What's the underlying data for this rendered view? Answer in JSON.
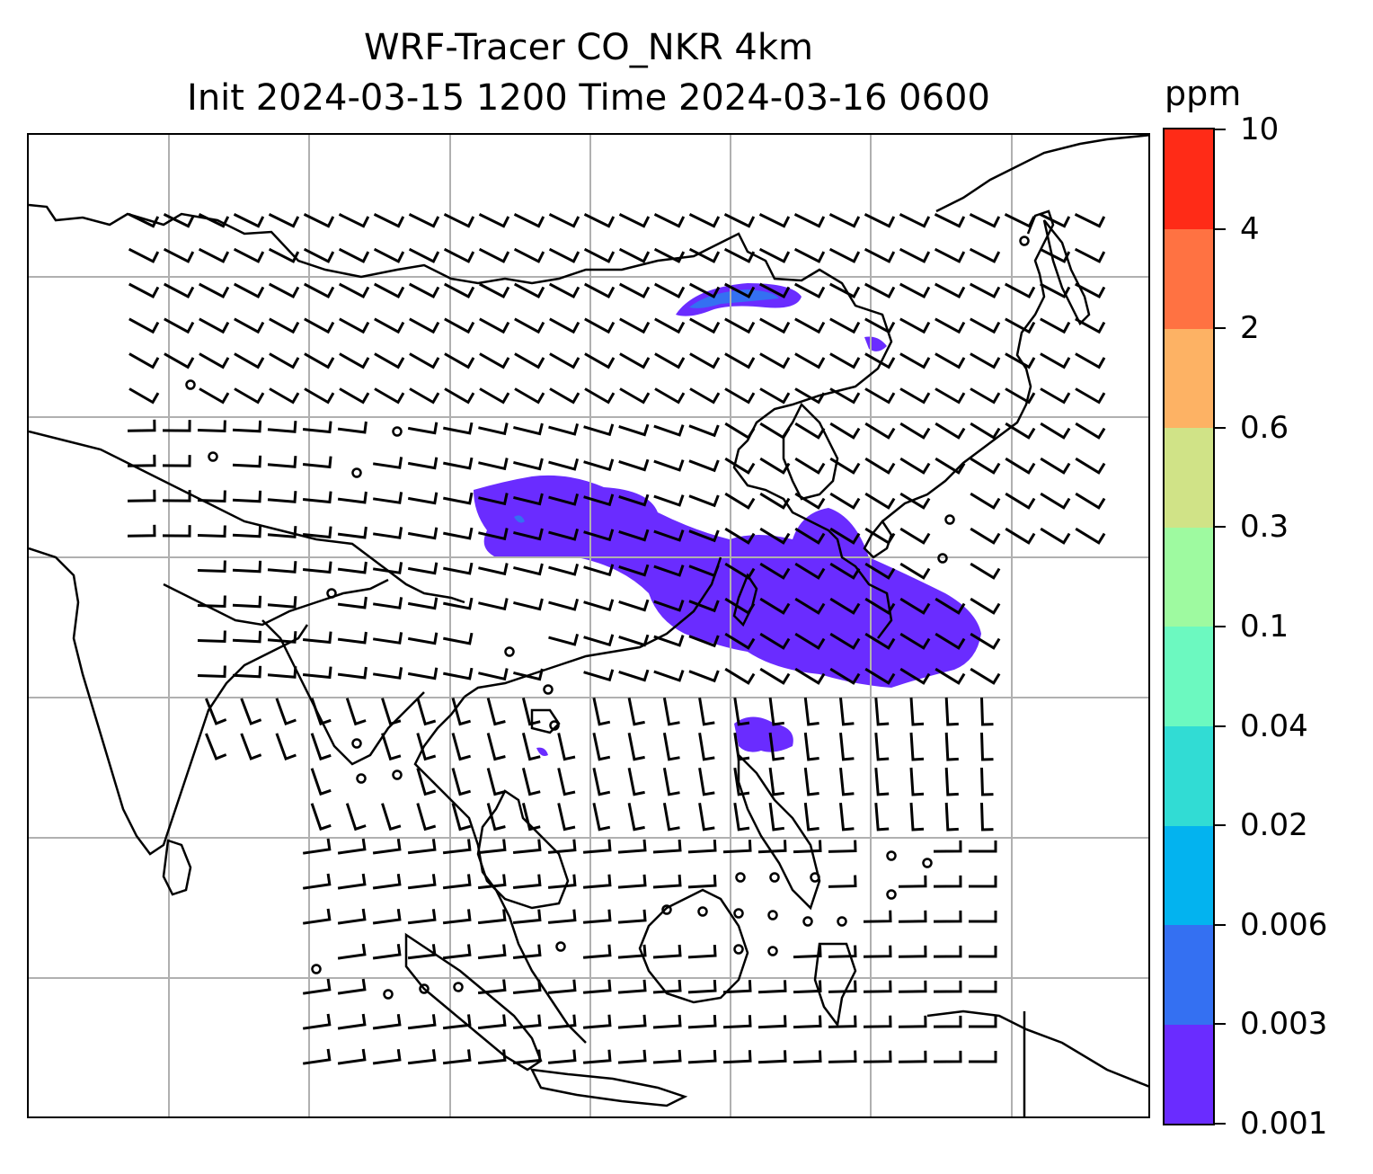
{
  "title": {
    "line1": "WRF-Tracer CO_NKR 4km",
    "line2": "Init 2024-03-15 1200 Time 2024-03-16 0600"
  },
  "colorbar": {
    "unit": "ppm",
    "levels": [
      "0.001",
      "0.003",
      "0.006",
      "0.02",
      "0.04",
      "0.1",
      "0.3",
      "0.6",
      "2",
      "4",
      "10"
    ],
    "colors": [
      "#6a2cff",
      "#3470f2",
      "#03b3ef",
      "#31dcd4",
      "#6cf9c0",
      "#9efaa0",
      "#d0e387",
      "#fdb264",
      "#ff7242",
      "#ff2b17"
    ]
  },
  "map": {
    "plume_color": "#6a2cff",
    "plume_core_color": "#3470f2",
    "gridline_color": "#b0b0b0"
  }
}
